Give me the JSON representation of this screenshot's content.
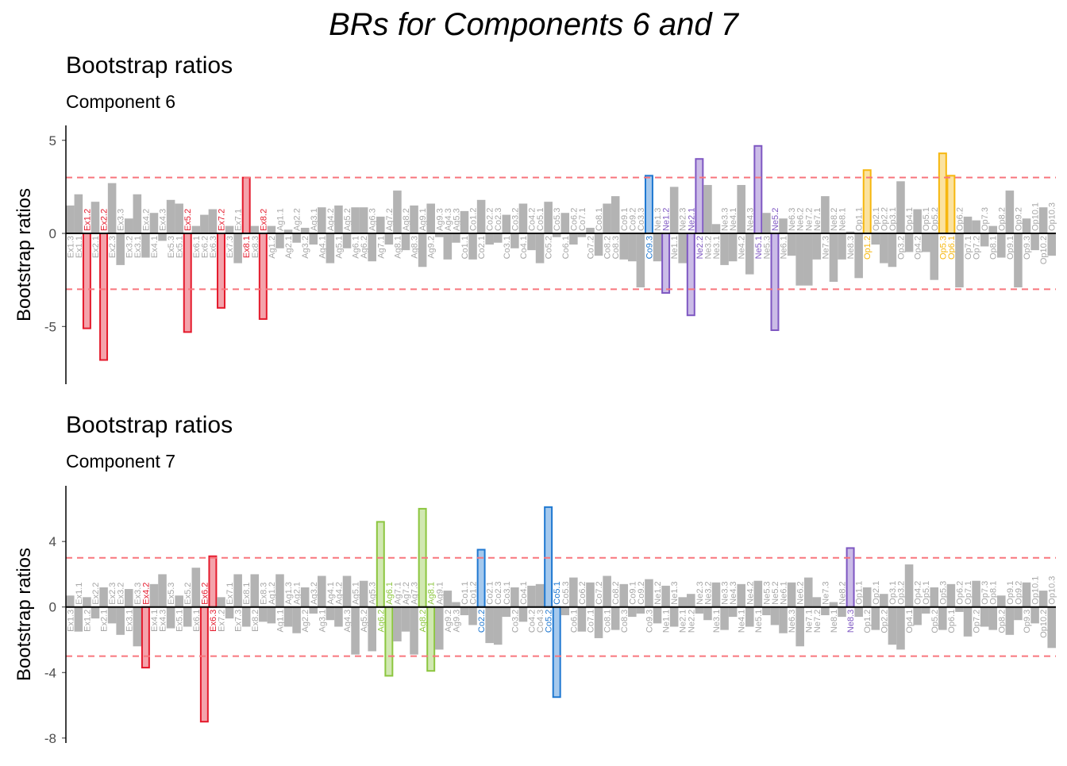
{
  "page_title": "BRs for Components 6 and 7",
  "chart_data": [
    {
      "type": "bar",
      "title": "Bootstrap ratios",
      "subtitle": "Component 6",
      "y_label": "Bootstrap ratios",
      "categories": [
        "Ex1.3",
        "Ex1.1",
        "Ex1.2",
        "Ex2.1",
        "Ex2.2",
        "Ex2.3",
        "Ex3.3",
        "Ex3.2",
        "Ex3.1",
        "Ex4.2",
        "Ex4.1",
        "Ex4.3",
        "Ex5.3",
        "Ex5.1",
        "Ex5.2",
        "Ex6.1",
        "Ex6.2",
        "Ex6.3",
        "Ex7.2",
        "Ex7.3",
        "Ex7.1",
        "Ex8.1",
        "Ex8.3",
        "Ex8.2",
        "Ag1.2",
        "Ag1.1",
        "Ag2.1",
        "Ag2.2",
        "Ag3.2",
        "Ag3.1",
        "Ag4.1",
        "Ag4.2",
        "Ag5.1",
        "Ag5.2",
        "Ag6.1",
        "Ag6.2",
        "Ag6.3",
        "Ag7.1",
        "Ag7.2",
        "Ag8.1",
        "Ag8.2",
        "Ag8.3",
        "Ag9.1",
        "Ag9.2",
        "Ag9.3",
        "Ag4.3",
        "Ag5.3",
        "Co1.1",
        "Co1.2",
        "Co2.1",
        "Co2.2",
        "Co2.3",
        "Co3.1",
        "Co3.2",
        "Co4.1",
        "Co4.2",
        "Co5.1",
        "Co5.2",
        "Co5.3",
        "Co6.1",
        "Co6.2",
        "Co7.1",
        "Co7.2",
        "Co8.1",
        "Co8.2",
        "Co8.3",
        "Co9.1",
        "Co9.2",
        "Co3.3",
        "Co9.3",
        "Ne1.3",
        "Ne1.2",
        "Ne1.1",
        "Ne2.3",
        "Ne2.1",
        "Ne2.2",
        "Ne3.2",
        "Ne3.1",
        "Ne3.3",
        "Ne4.1",
        "Ne4.2",
        "Ne4.3",
        "Ne5.1",
        "Ne5.3",
        "Ne5.2",
        "Ne6.1",
        "Ne6.3",
        "Ne6.2",
        "Ne7.2",
        "Ne7.1",
        "Ne7.3",
        "Ne8.2",
        "Ne8.1",
        "Ne8.3",
        "Op1.1",
        "Op1.2",
        "Op2.1",
        "Op2.2",
        "Op3.1",
        "Op3.2",
        "Op4.1",
        "Op4.2",
        "Op5.1",
        "Op5.2",
        "Op5.3",
        "Op6.1",
        "Op6.2",
        "Op7.1",
        "Op7.2",
        "Op7.3",
        "Op8.1",
        "Op8.2",
        "Op9.1",
        "Op9.2",
        "Op9.3",
        "Op10.1",
        "Op10.2",
        "Op10.3"
      ],
      "values": [
        1.5,
        2.1,
        -5.1,
        1.7,
        -6.8,
        2.7,
        -1.7,
        0.8,
        2.1,
        -1.3,
        1.1,
        -0.4,
        1.8,
        1.6,
        -5.3,
        0.4,
        1.0,
        1.3,
        -4.0,
        0.4,
        -1.6,
        3.0,
        0.4,
        -4.6,
        0.4,
        -0.8,
        0.2,
        -0.5,
        0.3,
        -0.6,
        1.4,
        -1.6,
        1.5,
        -0.8,
        1.4,
        1.4,
        -1.5,
        0.9,
        -0.6,
        2.3,
        -0.9,
        1.5,
        -1.8,
        1.6,
        -0.2,
        -1.4,
        -0.5,
        1.2,
        -1.4,
        1.8,
        -0.6,
        -0.5,
        1.0,
        -0.8,
        1.6,
        -0.9,
        -1.6,
        1.7,
        -0.2,
        1.1,
        -0.6,
        -0.2,
        0.3,
        -1.2,
        1.6,
        2.0,
        -1.4,
        -1.5,
        -2.9,
        3.1,
        -1.5,
        -3.2,
        2.5,
        -1.6,
        -4.4,
        4.0,
        2.6,
        0.5,
        -1.7,
        -1.5,
        2.6,
        -2.2,
        4.7,
        1.1,
        -5.2,
        0.8,
        -1.2,
        -2.8,
        -2.8,
        -1.4,
        2.0,
        -2.6,
        -1.4,
        0.1,
        -2.4,
        3.4,
        -0.6,
        -1.6,
        -1.8,
        2.8,
        -1.0,
        1.3,
        -1.0,
        -2.5,
        4.3,
        3.1,
        -2.9,
        0.9,
        0.7,
        -0.7,
        0.4,
        -1.3,
        2.3,
        -2.9,
        0.8,
        -0.9,
        1.4,
        -1.2
      ],
      "color": "#b3b3b3",
      "threshold": 3,
      "reference_lines": [
        3,
        -3
      ],
      "reference_color": "#f8767d",
      "domain_colors": {
        "Ex": "#e41a2c",
        "Ag": "#8cc63f",
        "Co": "#1f78d1",
        "Ne": "#7e57c2",
        "Op": "#f6b70f"
      },
      "ylim": [
        -8.1,
        5.8
      ],
      "yticks": [
        -5,
        0,
        5
      ]
    },
    {
      "type": "bar",
      "title": "Bootstrap ratios",
      "subtitle": "Component 7",
      "y_label": "Bootstrap ratios",
      "categories": [
        "Ex1.3",
        "Ex1.1",
        "Ex1.2",
        "Ex2.2",
        "Ex2.1",
        "Ex2.3",
        "Ex3.2",
        "Ex3.1",
        "Ex3.3",
        "Ex4.2",
        "Ex4.1",
        "Ex4.3",
        "Ex5.3",
        "Ex5.1",
        "Ex5.2",
        "Ex6.1",
        "Ex6.2",
        "Ex6.3",
        "Ex7.2",
        "Ex7.1",
        "Ex7.3",
        "Ex8.1",
        "Ex8.2",
        "Ex8.3",
        "Ag1.2",
        "Ag1.1",
        "Ag1.3",
        "Ag2.1",
        "Ag2.2",
        "Ag3.2",
        "Ag3.1",
        "Ag4.1",
        "Ag4.2",
        "Ag4.3",
        "Ag5.1",
        "Ag5.2",
        "Ag5.3",
        "Ag6.2",
        "Ag6.1",
        "Ag7.1",
        "Ag7.2",
        "Ag7.3",
        "Ag8.2",
        "Ag8.1",
        "Ag9.1",
        "Ag9.2",
        "Ag9.3",
        "Co1.1",
        "Co1.2",
        "Co2.2",
        "Co2.1",
        "Co2.3",
        "Co3.1",
        "Co3.2",
        "Co4.1",
        "Co4.2",
        "Co4.3",
        "Co5.2",
        "Co5.1",
        "Co5.3",
        "Co6.1",
        "Co6.2",
        "Co7.1",
        "Co7.2",
        "Co8.1",
        "Co8.2",
        "Co8.3",
        "Co9.1",
        "Co9.2",
        "Co9.3",
        "Ne1.2",
        "Ne1.1",
        "Ne1.3",
        "Ne2.1",
        "Ne2.2",
        "Ne2.3",
        "Ne3.2",
        "Ne3.1",
        "Ne3.3",
        "Ne4.3",
        "Ne4.1",
        "Ne4.2",
        "Ne5.1",
        "Ne5.3",
        "Ne5.2",
        "Ne6.1",
        "Ne6.3",
        "Ne6.2",
        "Ne7.1",
        "Ne7.2",
        "Ne7.3",
        "Ne8.1",
        "Ne8.2",
        "Ne8.3",
        "Op1.1",
        "Op1.2",
        "Op2.1",
        "Op2.2",
        "Op3.1",
        "Op3.2",
        "Op4.1",
        "Op4.2",
        "Op5.1",
        "Op5.2",
        "Op5.3",
        "Op6.1",
        "Op6.2",
        "Op7.1",
        "Op7.2",
        "Op7.3",
        "Op8.1",
        "Op8.2",
        "Op9.1",
        "Op9.2",
        "Op9.3",
        "Op10.1",
        "Op10.2",
        "Op10.3"
      ],
      "values": [
        0.7,
        -1.5,
        0.6,
        -0.7,
        1.2,
        -1.0,
        -1.7,
        1.1,
        -2.4,
        -3.7,
        1.4,
        2.0,
        -1.3,
        0.7,
        -1.2,
        2.4,
        -7.0,
        3.1,
        0.6,
        -0.7,
        2.0,
        -1.2,
        2.0,
        -0.9,
        -1.0,
        2.0,
        -1.2,
        -1.6,
        1.2,
        -0.4,
        1.9,
        -0.8,
        -1.2,
        1.9,
        -2.9,
        1.6,
        -2.7,
        5.2,
        -4.2,
        -2.1,
        -1.5,
        -2.9,
        6.0,
        -3.9,
        -2.6,
        1.0,
        0.3,
        -0.5,
        -1.1,
        3.5,
        -2.2,
        -2.3,
        -0.6,
        1.2,
        -0.9,
        1.3,
        1.4,
        6.1,
        -5.5,
        -0.5,
        1.8,
        -1.5,
        1.5,
        -1.9,
        1.9,
        -1.4,
        1.4,
        -0.6,
        -0.4,
        1.7,
        -1.0,
        1.3,
        -1.2,
        0.6,
        0.8,
        -0.4,
        -0.8,
        1.5,
        -1.4,
        -0.6,
        1.4,
        -1.2,
        1.6,
        -0.5,
        -1.1,
        -1.6,
        1.5,
        -2.4,
        1.8,
        0.6,
        -0.5,
        0.3,
        -0.6,
        3.6,
        -0.6,
        1.2,
        -1.4,
        0.8,
        -2.3,
        -2.6,
        2.6,
        -1.1,
        -0.4,
        1.2,
        -1.4,
        1.4,
        -0.3,
        -1.8,
        1.6,
        -1.2,
        -1.4,
        0.7,
        -1.7,
        -0.8,
        1.5,
        -1.0,
        1.0,
        -2.5
      ],
      "color": "#b3b3b3",
      "threshold": 3,
      "reference_lines": [
        3,
        -3
      ],
      "reference_color": "#f8767d",
      "domain_colors": {
        "Ex": "#e41a2c",
        "Ag": "#8cc63f",
        "Co": "#1f78d1",
        "Ne": "#7e57c2",
        "Op": "#f6b70f"
      },
      "ylim": [
        -8.3,
        7.4
      ],
      "yticks": [
        -8,
        -4,
        0,
        4
      ]
    }
  ]
}
